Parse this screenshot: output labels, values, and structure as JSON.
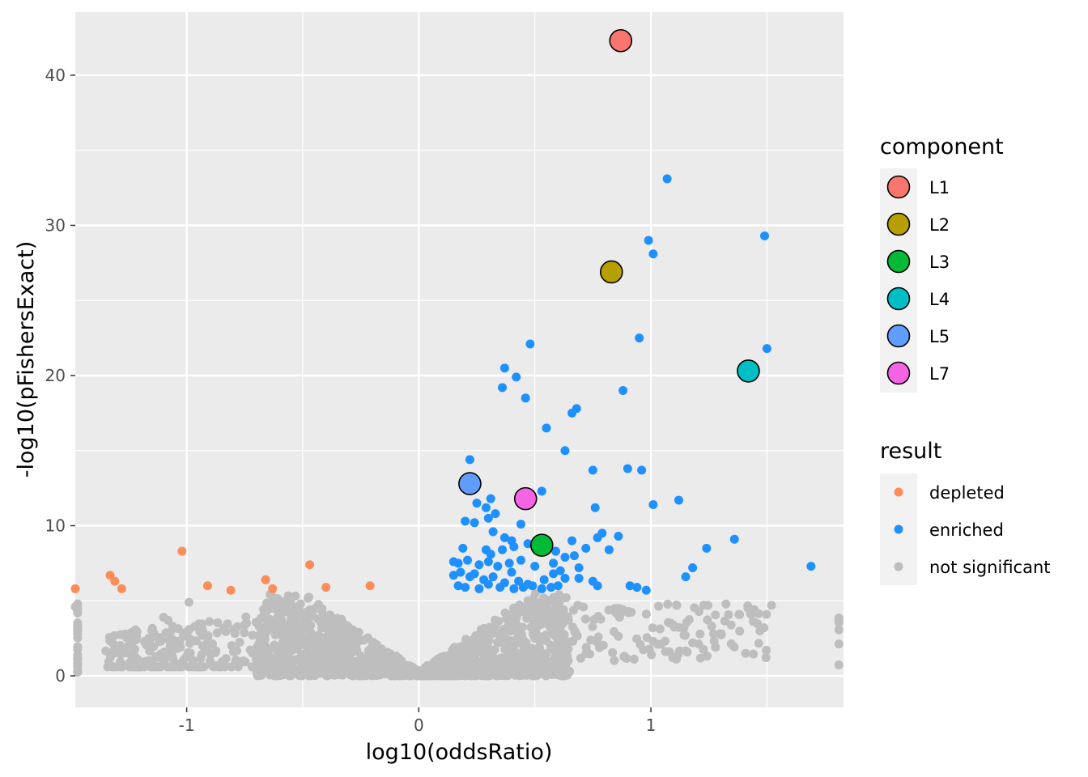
{
  "chart_data": {
    "type": "scatter",
    "xlabel": "log10(oddsRatio)",
    "ylabel": "-log10(pFishersExact)",
    "xlim": [
      -1.48,
      1.83
    ],
    "ylim": [
      -2.1,
      44.2
    ],
    "x_ticks": [
      -1,
      0,
      1
    ],
    "x_tick_labels": [
      "-1",
      "0",
      "1"
    ],
    "y_ticks": [
      0,
      10,
      20,
      30,
      40
    ],
    "y_tick_labels": [
      "0",
      "10",
      "20",
      "30",
      "40"
    ],
    "grid": true,
    "legend_position": "right",
    "colors": {
      "panel_background": "#ebebeb",
      "grid": "#ffffff",
      "depleted": "#fc8d59",
      "enriched": "#1e90ff",
      "not_significant": "#bebebe",
      "L1": "#f8766d",
      "L2": "#b79f00",
      "L3": "#00ba38",
      "L4": "#00bfc4",
      "L5": "#619cff",
      "L7": "#f564e3"
    },
    "legends": [
      {
        "title": "component",
        "entries": [
          {
            "label": "L1",
            "color": "#f8766d"
          },
          {
            "label": "L2",
            "color": "#b79f00"
          },
          {
            "label": "L3",
            "color": "#00ba38"
          },
          {
            "label": "L4",
            "color": "#00bfc4"
          },
          {
            "label": "L5",
            "color": "#619cff"
          },
          {
            "label": "L7",
            "color": "#f564e3"
          }
        ]
      },
      {
        "title": "result",
        "entries": [
          {
            "label": "depleted",
            "color": "#fc8d59"
          },
          {
            "label": "enriched",
            "color": "#1e90ff"
          },
          {
            "label": "not significant",
            "color": "#bebebe"
          }
        ]
      }
    ],
    "series": [
      {
        "name": "depleted",
        "color": "#fc8d59",
        "points": [
          [
            -1.48,
            5.8
          ],
          [
            -1.33,
            6.7
          ],
          [
            -1.31,
            6.3
          ],
          [
            -1.28,
            5.8
          ],
          [
            -1.02,
            8.3
          ],
          [
            -0.91,
            6.0
          ],
          [
            -0.81,
            5.7
          ],
          [
            -0.66,
            6.4
          ],
          [
            -0.63,
            5.8
          ],
          [
            -0.47,
            7.4
          ],
          [
            -0.4,
            5.9
          ],
          [
            -0.21,
            6.0
          ]
        ]
      },
      {
        "name": "enriched",
        "color": "#1e90ff",
        "points": [
          [
            1.07,
            33.1
          ],
          [
            1.49,
            29.3
          ],
          [
            0.99,
            29.0
          ],
          [
            1.01,
            28.1
          ],
          [
            0.95,
            22.5
          ],
          [
            1.5,
            21.8
          ],
          [
            0.48,
            22.1
          ],
          [
            0.37,
            20.5
          ],
          [
            0.42,
            19.9
          ],
          [
            0.36,
            19.2
          ],
          [
            0.46,
            18.5
          ],
          [
            0.88,
            19.0
          ],
          [
            0.68,
            17.8
          ],
          [
            0.66,
            17.5
          ],
          [
            0.55,
            16.5
          ],
          [
            0.63,
            15.0
          ],
          [
            0.22,
            14.4
          ],
          [
            0.75,
            13.7
          ],
          [
            0.9,
            13.8
          ],
          [
            0.96,
            13.7
          ],
          [
            0.53,
            12.3
          ],
          [
            0.31,
            11.8
          ],
          [
            0.25,
            11.5
          ],
          [
            0.29,
            11.2
          ],
          [
            0.46,
            11.5
          ],
          [
            0.76,
            11.2
          ],
          [
            1.12,
            11.7
          ],
          [
            1.01,
            11.4
          ],
          [
            0.2,
            10.3
          ],
          [
            0.24,
            10.2
          ],
          [
            0.3,
            10.5
          ],
          [
            0.33,
            10.8
          ],
          [
            0.44,
            10.1
          ],
          [
            0.32,
            9.6
          ],
          [
            0.37,
            9.2
          ],
          [
            0.4,
            9.0
          ],
          [
            0.66,
            9.0
          ],
          [
            0.79,
            9.5
          ],
          [
            0.77,
            9.2
          ],
          [
            0.86,
            9.3
          ],
          [
            1.36,
            9.1
          ],
          [
            0.19,
            8.5
          ],
          [
            0.29,
            8.4
          ],
          [
            0.31,
            8.1
          ],
          [
            0.36,
            8.4
          ],
          [
            0.41,
            8.6
          ],
          [
            0.47,
            8.8
          ],
          [
            0.59,
            8.3
          ],
          [
            0.63,
            7.9
          ],
          [
            0.67,
            8.0
          ],
          [
            0.72,
            8.5
          ],
          [
            0.82,
            8.4
          ],
          [
            1.24,
            8.5
          ],
          [
            0.15,
            7.6
          ],
          [
            0.17,
            7.5
          ],
          [
            0.21,
            7.7
          ],
          [
            0.26,
            7.4
          ],
          [
            0.3,
            7.6
          ],
          [
            0.34,
            7.3
          ],
          [
            0.39,
            7.5
          ],
          [
            0.44,
            7.7
          ],
          [
            0.5,
            7.3
          ],
          [
            0.58,
            7.5
          ],
          [
            0.61,
            7.0
          ],
          [
            0.69,
            7.2
          ],
          [
            1.18,
            7.2
          ],
          [
            1.69,
            7.3
          ],
          [
            0.15,
            6.7
          ],
          [
            0.18,
            6.9
          ],
          [
            0.22,
            6.6
          ],
          [
            0.24,
            6.8
          ],
          [
            0.28,
            6.4
          ],
          [
            0.32,
            6.6
          ],
          [
            0.37,
            6.2
          ],
          [
            0.4,
            6.9
          ],
          [
            0.43,
            6.3
          ],
          [
            0.47,
            6.1
          ],
          [
            0.54,
            6.4
          ],
          [
            0.58,
            6.8
          ],
          [
            0.63,
            6.5
          ],
          [
            0.69,
            6.5
          ],
          [
            0.75,
            6.3
          ],
          [
            1.15,
            6.6
          ],
          [
            0.17,
            6.0
          ],
          [
            0.2,
            5.9
          ],
          [
            0.26,
            5.8
          ],
          [
            0.3,
            6.1
          ],
          [
            0.35,
            5.9
          ],
          [
            0.41,
            5.8
          ],
          [
            0.45,
            5.9
          ],
          [
            0.49,
            6.0
          ],
          [
            0.53,
            5.8
          ],
          [
            0.57,
            5.9
          ],
          [
            0.6,
            6.0
          ],
          [
            0.77,
            6.0
          ],
          [
            0.91,
            6.0
          ],
          [
            0.94,
            5.9
          ],
          [
            0.98,
            5.7
          ]
        ]
      },
      {
        "name": "not significant",
        "color": "#bebebe",
        "points": []
      }
    ],
    "highlighted": [
      {
        "label": "L1",
        "color": "#f8766d",
        "x": 0.87,
        "y": 42.3
      },
      {
        "label": "L2",
        "color": "#b79f00",
        "x": 0.83,
        "y": 26.9
      },
      {
        "label": "L4",
        "color": "#00bfc4",
        "x": 1.42,
        "y": 20.3
      },
      {
        "label": "L5",
        "color": "#619cff",
        "x": 0.22,
        "y": 12.8
      },
      {
        "label": "L7",
        "color": "#f564e3",
        "x": 0.46,
        "y": 11.8
      },
      {
        "label": "L3",
        "color": "#00ba38",
        "x": 0.53,
        "y": 8.7
      }
    ]
  }
}
